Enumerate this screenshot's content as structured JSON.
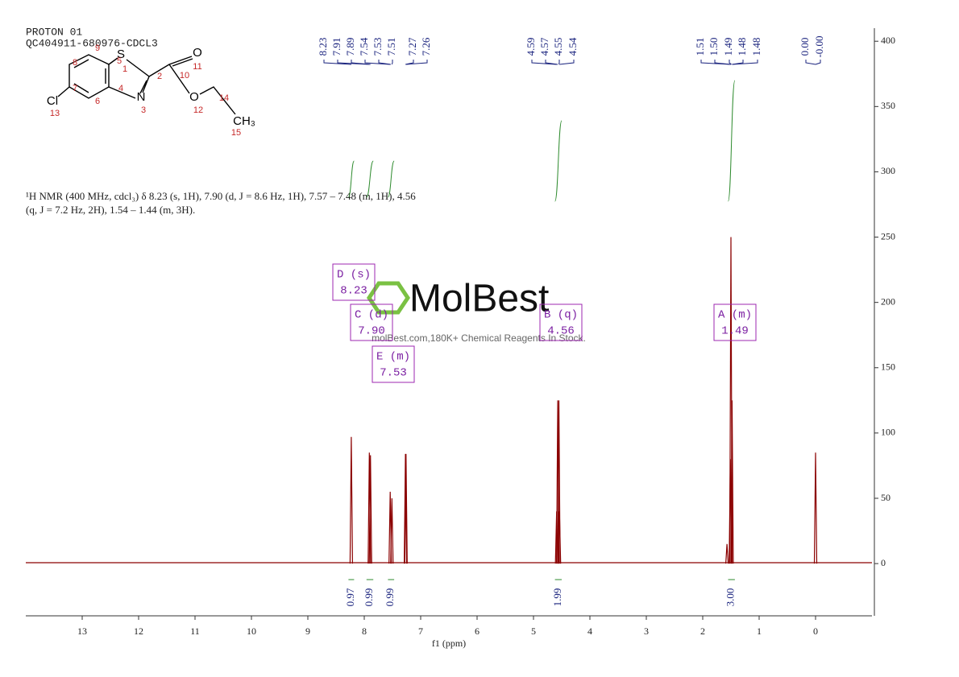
{
  "header": {
    "title": "PROTON 01",
    "subtitle": "QC404911-680976-CDCL3"
  },
  "description": [
    "¹H NMR (400 MHz, cdcl₃) δ 8.23 (s, 1H), 7.90 (d, J = 8.6 Hz, 1H), 7.57 – 7.48 (m, 1H), 4.56",
    "(q, J = 7.2 Hz, 2H), 1.54 – 1.44 (m, 3H)."
  ],
  "structure": {
    "atoms": [
      "S",
      "O",
      "N",
      "O",
      "Cl",
      "CH₃"
    ],
    "numbers": [
      "1",
      "2",
      "3",
      "4",
      "5",
      "6",
      "7",
      "8",
      "9",
      "10",
      "11",
      "12",
      "13",
      "14",
      "15"
    ]
  },
  "watermark": {
    "brand": "MolBest",
    "tagline": "molBest.com,180K+ Chemical Reagents In Stock."
  },
  "peak_labels": [
    "8.23",
    "7.91",
    "7.89",
    "7.54",
    "7.53",
    "7.51",
    "7.27",
    "7.26",
    "4.59",
    "4.57",
    "4.55",
    "4.54",
    "1.51",
    "1.50",
    "1.49",
    "1.48",
    "1.48",
    "0.00",
    "-0.00"
  ],
  "multiplets": [
    {
      "name": "D (s)",
      "shift": "8.23"
    },
    {
      "name": "C (d)",
      "shift": "7.90"
    },
    {
      "name": "E (m)",
      "shift": "7.53"
    },
    {
      "name": "B (q)",
      "shift": "4.56"
    },
    {
      "name": "A (m)",
      "shift": "1.49"
    }
  ],
  "chart_data": {
    "type": "nmr",
    "x_label": "f1 (ppm)",
    "color": "#8b0000",
    "integral_color": "#2e8b2e",
    "x": [
      8.23,
      7.91,
      7.89,
      7.54,
      7.51,
      7.27,
      7.26,
      4.59,
      4.57,
      4.55,
      4.54,
      1.57,
      1.51,
      1.5,
      1.48,
      0.0
    ],
    "values": [
      97,
      85,
      83,
      55,
      50,
      84,
      84,
      40,
      125,
      125,
      40,
      15,
      80,
      250,
      125,
      85
    ],
    "integrals": [
      {
        "from": 8.28,
        "to": 8.18,
        "label": "0.97"
      },
      {
        "from": 7.96,
        "to": 7.84,
        "label": "0.99"
      },
      {
        "from": 7.58,
        "to": 7.47,
        "label": "0.99"
      },
      {
        "from": 4.62,
        "to": 4.5,
        "label": "1.99"
      },
      {
        "from": 1.55,
        "to": 1.43,
        "label": "3.00"
      }
    ],
    "xlim": [
      14,
      -1
    ],
    "xticks": [
      13,
      12,
      11,
      10,
      9,
      8,
      7,
      6,
      5,
      4,
      3,
      2,
      1,
      0
    ],
    "ylim": [
      -40,
      410
    ],
    "yticks": [
      0,
      50,
      100,
      150,
      200,
      250,
      300,
      350,
      400
    ]
  }
}
